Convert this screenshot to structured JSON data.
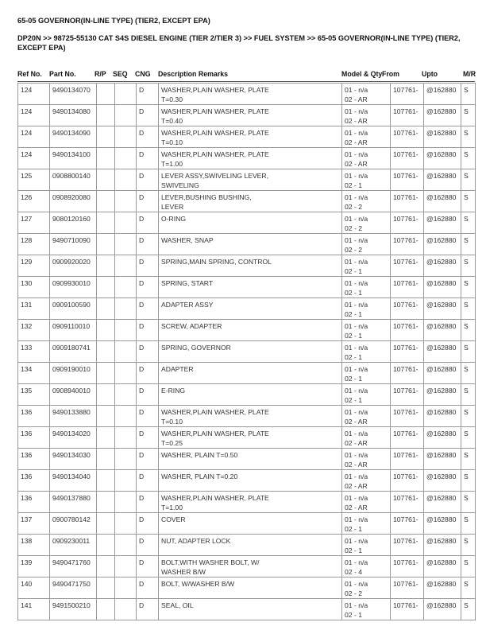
{
  "title": "65-05 GOVERNOR(IN-LINE TYPE) (TIER2, EXCEPT EPA)",
  "breadcrumb": "DP20N >> 98725-55130 CAT S4S DIESEL ENGINE (TIER 2/TIER 3) >> FUEL SYSTEM >> 65-05 GOVERNOR(IN-LINE TYPE) (TIER2, EXCEPT EPA)",
  "headers": {
    "ref": "Ref No.",
    "part": "Part No.",
    "rp": "R/P",
    "seq": "SEQ",
    "cng": "CNG",
    "desc": "Description Remarks",
    "model": "Model & Qty",
    "from": "From",
    "upto": "Upto",
    "mr": "M/R"
  },
  "rows": [
    [
      "124",
      "9490134070",
      "D",
      "WASHER,PLAIN WASHER, PLATE",
      "T=0.30",
      "01 - n/a",
      "02 - AR"
    ],
    [
      "124",
      "9490134080",
      "D",
      "WASHER,PLAIN WASHER, PLATE",
      "T=0.40",
      "01 - n/a",
      "02 - AR"
    ],
    [
      "124",
      "9490134090",
      "D",
      "WASHER,PLAIN WASHER, PLATE",
      "T=0.10",
      "01 - n/a",
      "02 - AR"
    ],
    [
      "124",
      "9490134100",
      "D",
      "WASHER,PLAIN WASHER, PLATE",
      "T=1.00",
      "01 - n/a",
      "02 - AR"
    ],
    [
      "125",
      "0908800140",
      "D",
      "LEVER ASSY,SWIVELING LEVER,",
      "SWIVELING",
      "01 - n/a",
      "02 - 1"
    ],
    [
      "126",
      "0908920080",
      "D",
      "LEVER,BUSHING BUSHING,",
      "LEVER",
      "01 - n/a",
      "02 - 2"
    ],
    [
      "127",
      "9080120160",
      "D",
      "O-RING",
      "",
      "01 - n/a",
      "02 - 2"
    ],
    [
      "128",
      "9490710090",
      "D",
      "WASHER, SNAP",
      "",
      "01 - n/a",
      "02 - 2"
    ],
    [
      "129",
      "0909920020",
      "D",
      "SPRING,MAIN SPRING, CONTROL",
      "",
      "01 - n/a",
      "02 - 1"
    ],
    [
      "130",
      "0909930010",
      "D",
      "SPRING, START",
      "",
      "01 - n/a",
      "02 - 1"
    ],
    [
      "131",
      "0909100590",
      "D",
      "ADAPTER ASSY",
      "",
      "01 - n/a",
      "02 - 1"
    ],
    [
      "132",
      "0909110010",
      "D",
      "SCREW, ADAPTER",
      "",
      "01 - n/a",
      "02 - 1"
    ],
    [
      "133",
      "0909180741",
      "D",
      "SPRING, GOVERNOR",
      "",
      "01 - n/a",
      "02 - 1"
    ],
    [
      "134",
      "0909190010",
      "D",
      "ADAPTER",
      "",
      "01 - n/a",
      "02 - 1"
    ],
    [
      "135",
      "0908940010",
      "D",
      "E-RING",
      "",
      "01 - n/a",
      "02 - 1"
    ],
    [
      "136",
      "9490133880",
      "D",
      "WASHER,PLAIN WASHER, PLATE",
      "T=0.10",
      "01 - n/a",
      "02 - AR"
    ],
    [
      "136",
      "9490134020",
      "D",
      "WASHER,PLAIN WASHER, PLATE",
      "T=0.25",
      "01 - n/a",
      "02 - AR"
    ],
    [
      "136",
      "9490134030",
      "D",
      "WASHER, PLAIN T=0.50",
      "",
      "01 - n/a",
      "02 - AR"
    ],
    [
      "136",
      "9490134040",
      "D",
      "WASHER, PLAIN T=0.20",
      "",
      "01 - n/a",
      "02 - AR"
    ],
    [
      "136",
      "9490137880",
      "D",
      "WASHER,PLAIN WASHER, PLATE",
      "T=1.00",
      "01 - n/a",
      "02 - AR"
    ],
    [
      "137",
      "0900780142",
      "D",
      "COVER",
      "",
      "01 - n/a",
      "02 - 1"
    ],
    [
      "138",
      "0909230011",
      "D",
      "NUT, ADAPTER LOCK",
      "",
      "01 - n/a",
      "02 - 1"
    ],
    [
      "139",
      "9490471760",
      "D",
      "BOLT,WITH WASHER BOLT, W/",
      "WASHER B/W",
      "01 - n/a",
      "02 - 4"
    ],
    [
      "140",
      "9490471750",
      "D",
      "BOLT, W/WASHER B/W",
      "",
      "01 - n/a",
      "02 - 2"
    ],
    [
      "141",
      "9491500210",
      "D",
      "SEAL, OIL",
      "",
      "01 - n/a",
      "02 - 1"
    ]
  ],
  "from_value": "107761-",
  "upto_value": "@162880",
  "mr_value": "S"
}
